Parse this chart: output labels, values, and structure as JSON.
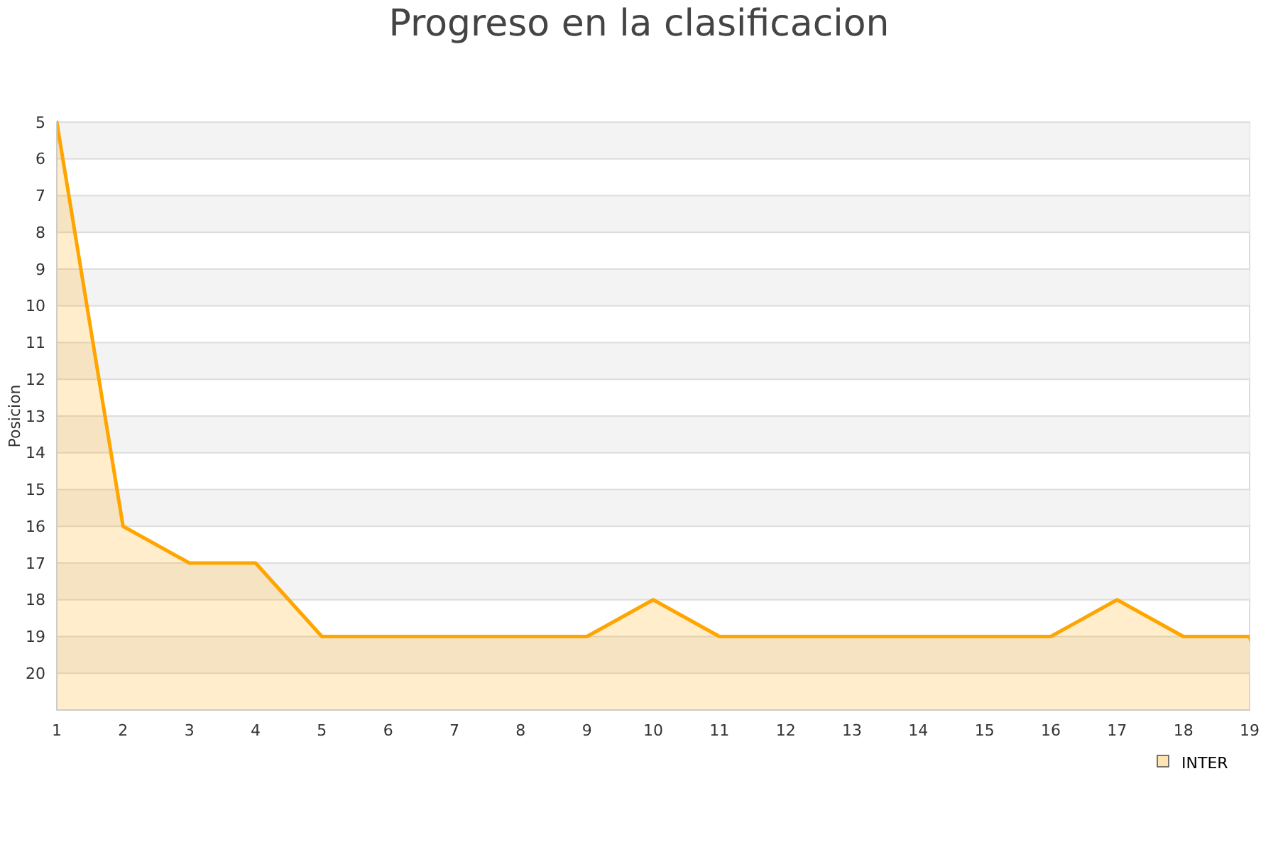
{
  "chart_data": {
    "type": "area",
    "title": "Progreso en la clasificacion",
    "ylabel": "Posicion",
    "x": [
      1,
      2,
      3,
      4,
      5,
      6,
      7,
      8,
      9,
      10,
      11,
      12,
      13,
      14,
      15,
      16,
      17,
      18,
      19
    ],
    "xlim": [
      1,
      19
    ],
    "xticks": [
      1,
      2,
      3,
      4,
      5,
      6,
      7,
      8,
      9,
      10,
      11,
      12,
      13,
      14,
      15,
      16,
      17,
      18,
      19
    ],
    "ylim": [
      21,
      5
    ],
    "yticks": [
      5,
      6,
      7,
      8,
      9,
      10,
      11,
      12,
      13,
      14,
      15,
      16,
      17,
      18,
      19,
      20
    ],
    "grid": "y",
    "legend": "bottom right",
    "marker": "none",
    "line_style": "solid",
    "series": [
      {
        "name": "INTER",
        "color": "#ffa500",
        "values": [
          5,
          16,
          17,
          17,
          19,
          19,
          19,
          19,
          19,
          18,
          19,
          19,
          19,
          19,
          19,
          19,
          18,
          19,
          19
        ]
      }
    ]
  }
}
